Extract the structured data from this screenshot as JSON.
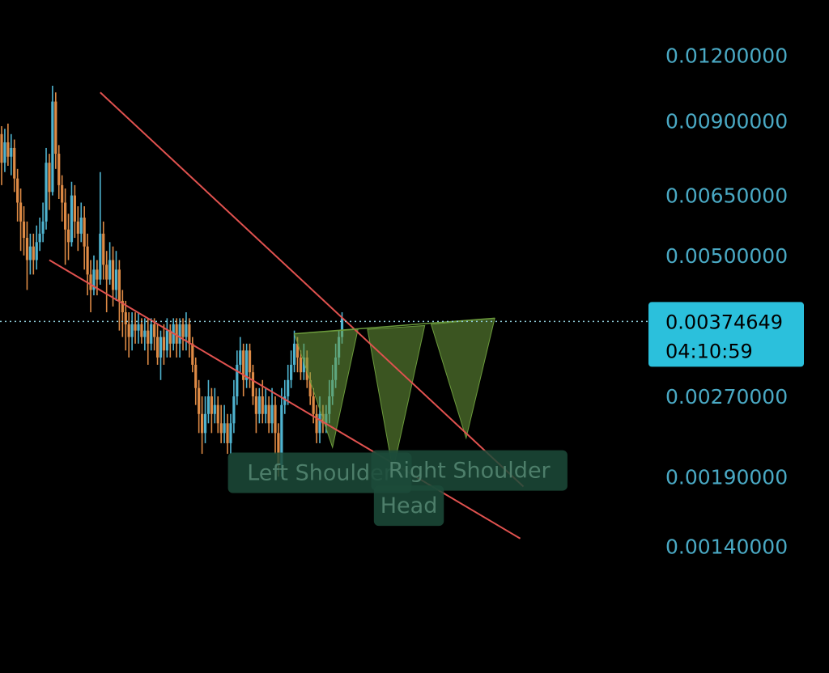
{
  "chart_data": {
    "type": "candlestick",
    "title": "",
    "xlabel": "",
    "ylabel": "",
    "y_scale": "log",
    "ylim": [
      0.00124,
      0.0135
    ],
    "y_ticks": [
      {
        "value": 0.012,
        "label": "0.01200000"
      },
      {
        "value": 0.009,
        "label": "0.00900000"
      },
      {
        "value": 0.0065,
        "label": "0.00650000"
      },
      {
        "value": 0.005,
        "label": "0.00500000"
      },
      {
        "value": 0.0027,
        "label": "0.00270000"
      },
      {
        "value": 0.0019,
        "label": "0.00190000"
      },
      {
        "value": 0.0014,
        "label": "0.00140000"
      }
    ],
    "current_price": {
      "value": 0.00374649,
      "label": "0.00374649",
      "countdown": "04:10:59"
    },
    "candles": [
      [
        0.0085,
        0.0075,
        0.0088,
        0.0068
      ],
      [
        0.0075,
        0.0082,
        0.0087,
        0.0072
      ],
      [
        0.0082,
        0.0077,
        0.0089,
        0.0074
      ],
      [
        0.0077,
        0.008,
        0.0085,
        0.0071
      ],
      [
        0.008,
        0.007,
        0.0083,
        0.0066
      ],
      [
        0.007,
        0.0063,
        0.0073,
        0.0058
      ],
      [
        0.0063,
        0.0058,
        0.0067,
        0.0051
      ],
      [
        0.0058,
        0.0054,
        0.0062,
        0.005
      ],
      [
        0.0054,
        0.0049,
        0.0058,
        0.0043
      ],
      [
        0.0049,
        0.0052,
        0.0055,
        0.0046
      ],
      [
        0.0052,
        0.0049,
        0.0055,
        0.0046
      ],
      [
        0.0049,
        0.0053,
        0.0057,
        0.0047
      ],
      [
        0.0053,
        0.0055,
        0.0059,
        0.0051
      ],
      [
        0.0055,
        0.0058,
        0.0063,
        0.0053
      ],
      [
        0.0058,
        0.0075,
        0.008,
        0.0056
      ],
      [
        0.0075,
        0.0066,
        0.0078,
        0.0061
      ],
      [
        0.0066,
        0.0098,
        0.0105,
        0.0065
      ],
      [
        0.0098,
        0.0078,
        0.0102,
        0.0073
      ],
      [
        0.0078,
        0.0068,
        0.0081,
        0.0064
      ],
      [
        0.0068,
        0.0063,
        0.0071,
        0.0058
      ],
      [
        0.0063,
        0.0056,
        0.0067,
        0.0048
      ],
      [
        0.0056,
        0.0053,
        0.006,
        0.0049
      ],
      [
        0.0053,
        0.0065,
        0.0069,
        0.0052
      ],
      [
        0.0065,
        0.0058,
        0.0068,
        0.0054
      ],
      [
        0.0058,
        0.0055,
        0.0062,
        0.0051
      ],
      [
        0.0055,
        0.0059,
        0.0063,
        0.0053
      ],
      [
        0.0059,
        0.0052,
        0.0062,
        0.0047
      ],
      [
        0.0052,
        0.0046,
        0.0055,
        0.0042
      ],
      [
        0.0046,
        0.0043,
        0.0049,
        0.0039
      ],
      [
        0.0043,
        0.0047,
        0.005,
        0.0042
      ],
      [
        0.0047,
        0.0045,
        0.0049,
        0.0042
      ],
      [
        0.0045,
        0.0055,
        0.0072,
        0.0044
      ],
      [
        0.0055,
        0.0048,
        0.0058,
        0.0045
      ],
      [
        0.0048,
        0.0045,
        0.0051,
        0.0039
      ],
      [
        0.0045,
        0.0049,
        0.0053,
        0.0044
      ],
      [
        0.0049,
        0.0043,
        0.0052,
        0.004
      ],
      [
        0.0043,
        0.0047,
        0.0051,
        0.0041
      ],
      [
        0.0047,
        0.0041,
        0.0049,
        0.0036
      ],
      [
        0.0041,
        0.0039,
        0.0043,
        0.0035
      ],
      [
        0.0039,
        0.0037,
        0.0041,
        0.0033
      ],
      [
        0.0037,
        0.0035,
        0.0039,
        0.0032
      ],
      [
        0.0035,
        0.0037,
        0.0039,
        0.0033
      ],
      [
        0.0037,
        0.0036,
        0.0039,
        0.0034
      ],
      [
        0.0036,
        0.0037,
        0.0039,
        0.0034
      ],
      [
        0.0037,
        0.0035,
        0.0038,
        0.0034
      ],
      [
        0.0035,
        0.0036,
        0.0038,
        0.0033
      ],
      [
        0.0036,
        0.0034,
        0.0038,
        0.0031
      ],
      [
        0.0034,
        0.0037,
        0.0038,
        0.0033
      ],
      [
        0.0037,
        0.0035,
        0.0038,
        0.0033
      ],
      [
        0.0035,
        0.0032,
        0.0037,
        0.0031
      ],
      [
        0.0032,
        0.0035,
        0.0036,
        0.0029
      ],
      [
        0.0035,
        0.0033,
        0.0037,
        0.0031
      ],
      [
        0.0033,
        0.0036,
        0.0038,
        0.0032
      ],
      [
        0.0036,
        0.0034,
        0.0037,
        0.0032
      ],
      [
        0.0034,
        0.0037,
        0.0038,
        0.0033
      ],
      [
        0.0037,
        0.0034,
        0.0038,
        0.0032
      ],
      [
        0.0034,
        0.0037,
        0.0038,
        0.0032
      ],
      [
        0.0037,
        0.0035,
        0.0038,
        0.0033
      ],
      [
        0.0035,
        0.0037,
        0.0039,
        0.0033
      ],
      [
        0.0037,
        0.0034,
        0.0038,
        0.0032
      ],
      [
        0.0034,
        0.0031,
        0.0035,
        0.003
      ],
      [
        0.0031,
        0.0028,
        0.0032,
        0.0026
      ],
      [
        0.0028,
        0.0025,
        0.0029,
        0.0023
      ],
      [
        0.0025,
        0.0023,
        0.0027,
        0.0021
      ],
      [
        0.0023,
        0.0025,
        0.0027,
        0.0022
      ],
      [
        0.0025,
        0.0027,
        0.0029,
        0.0024
      ],
      [
        0.0027,
        0.0025,
        0.0028,
        0.0023
      ],
      [
        0.0025,
        0.0026,
        0.0028,
        0.0024
      ],
      [
        0.0026,
        0.0024,
        0.0027,
        0.0023
      ],
      [
        0.0024,
        0.0023,
        0.0026,
        0.0022
      ],
      [
        0.0023,
        0.0024,
        0.0026,
        0.0022
      ],
      [
        0.0024,
        0.0022,
        0.0025,
        0.0021
      ],
      [
        0.0022,
        0.0024,
        0.0025,
        0.0021
      ],
      [
        0.0024,
        0.0027,
        0.0029,
        0.0023
      ],
      [
        0.0027,
        0.0031,
        0.0033,
        0.0026
      ],
      [
        0.0031,
        0.0033,
        0.0035,
        0.003
      ],
      [
        0.0033,
        0.0029,
        0.0034,
        0.0027
      ],
      [
        0.0029,
        0.0033,
        0.0034,
        0.0028
      ],
      [
        0.0033,
        0.003,
        0.0034,
        0.0028
      ],
      [
        0.003,
        0.0027,
        0.0031,
        0.0026
      ],
      [
        0.0027,
        0.0025,
        0.0028,
        0.0023
      ],
      [
        0.0025,
        0.0027,
        0.0028,
        0.0024
      ],
      [
        0.0027,
        0.0025,
        0.0029,
        0.0024
      ],
      [
        0.0025,
        0.0026,
        0.0028,
        0.0024
      ],
      [
        0.0026,
        0.0024,
        0.0027,
        0.0023
      ],
      [
        0.0024,
        0.0026,
        0.0028,
        0.0023
      ],
      [
        0.0026,
        0.0023,
        0.0027,
        0.0021
      ],
      [
        0.0023,
        0.002,
        0.0024,
        0.0019
      ],
      [
        0.002,
        0.0026,
        0.0028,
        0.0019
      ],
      [
        0.0026,
        0.0027,
        0.0029,
        0.0025
      ],
      [
        0.0027,
        0.0029,
        0.0031,
        0.0026
      ],
      [
        0.0029,
        0.0031,
        0.0033,
        0.0028
      ],
      [
        0.0031,
        0.0034,
        0.0036,
        0.003
      ],
      [
        0.0034,
        0.0032,
        0.0035,
        0.003
      ],
      [
        0.0032,
        0.003,
        0.0033,
        0.0029
      ],
      [
        0.003,
        0.0032,
        0.0034,
        0.0029
      ],
      [
        0.0032,
        0.0029,
        0.0033,
        0.0028
      ],
      [
        0.0029,
        0.0027,
        0.003,
        0.0026
      ],
      [
        0.0027,
        0.0025,
        0.0028,
        0.0024
      ],
      [
        0.0025,
        0.0023,
        0.0026,
        0.0022
      ],
      [
        0.0023,
        0.0025,
        0.0027,
        0.0022
      ],
      [
        0.0025,
        0.0024,
        0.0026,
        0.0023
      ],
      [
        0.0024,
        0.0025,
        0.0026,
        0.0023
      ],
      [
        0.0025,
        0.0027,
        0.0029,
        0.0024
      ],
      [
        0.0027,
        0.0029,
        0.0031,
        0.0026
      ],
      [
        0.0029,
        0.0032,
        0.0034,
        0.0028
      ],
      [
        0.0032,
        0.0035,
        0.0036,
        0.0031
      ],
      [
        0.0035,
        0.0038,
        0.0039,
        0.0034
      ]
    ],
    "trendlines": [
      {
        "name": "upper-trendline",
        "from": [
          31,
          0.0102
        ],
        "to": [
          164,
          0.00182
        ]
      },
      {
        "name": "lower-trendline",
        "from": [
          15,
          0.0049
        ],
        "to": [
          163,
          0.00145
        ]
      },
      {
        "name": "neckline",
        "from": [
          92,
          0.00355
        ],
        "to": [
          155,
          0.0038
        ]
      }
    ],
    "pattern": {
      "type": "inverse head and shoulders",
      "triangles": [
        {
          "name": "left-shoulder",
          "points": [
            [
              92,
              0.00355
            ],
            [
              104,
              0.00216
            ],
            [
              112,
              0.00362
            ]
          ]
        },
        {
          "name": "head",
          "points": [
            [
              115,
              0.00362
            ],
            [
              123,
              0.00195
            ],
            [
              133,
              0.00368
            ]
          ]
        },
        {
          "name": "right-shoulder",
          "points": [
            [
              135,
              0.0037
            ],
            [
              146,
              0.00225
            ],
            [
              155,
              0.0038
            ]
          ]
        }
      ],
      "labels": [
        {
          "name": "left-shoulder-label",
          "text": "Left Shoulder",
          "anchor": [
            100,
            0.00194
          ]
        },
        {
          "name": "right-shoulder-label",
          "text": "Right Shoulder",
          "anchor": [
            147,
            0.00196
          ]
        },
        {
          "name": "head-label",
          "text": "Head",
          "anchor": [
            128,
            0.00168
          ]
        }
      ]
    },
    "colors": {
      "background": "#000000",
      "up_candle": "#4fb3cf",
      "down_candle": "#dd8a45",
      "trendline": "#e0524f",
      "price_line": "#8ecbd8",
      "price_label": "#4aa9c4",
      "price_pill": "#2bc0dc",
      "pattern_fill": "#6b9a3c",
      "annotation_box": "#1c4b39",
      "annotation_text": "#4d7e6a"
    }
  }
}
